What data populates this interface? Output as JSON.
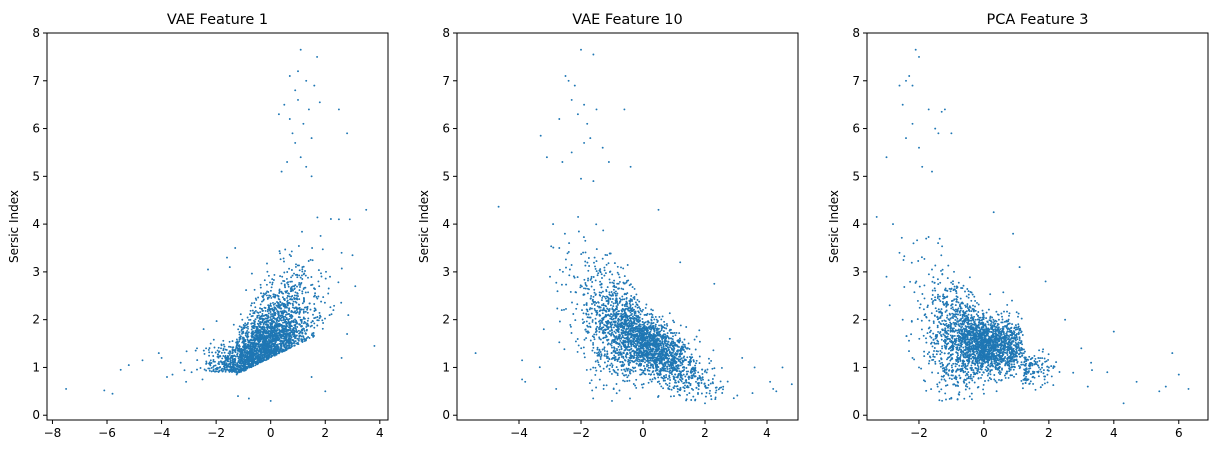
{
  "figure": {
    "marker_color": "#1f77b4",
    "axis_color": "#000000"
  },
  "chart_data": [
    {
      "type": "scatter",
      "title": "VAE Feature 1",
      "xlabel": "",
      "ylabel": "Sersic Index",
      "xlim": [
        -8.2,
        4.3
      ],
      "ylim": [
        -0.1,
        8.0
      ],
      "xticks": [
        -8,
        -6,
        -4,
        -2,
        0,
        2,
        4
      ],
      "yticks": [
        0,
        1,
        2,
        3,
        4,
        5,
        6,
        7,
        8
      ],
      "trend": "positive, fanning upward toward x≈0 to 2",
      "cloud": {
        "center": [
          -0.3,
          1.5
        ],
        "x_range": [
          -2.2,
          2.5
        ],
        "y_range": [
          0.3,
          4.6
        ]
      },
      "points": [
        [
          -7.5,
          0.55
        ],
        [
          -6.1,
          0.52
        ],
        [
          -5.8,
          0.45
        ],
        [
          -5.5,
          0.95
        ],
        [
          -5.2,
          1.05
        ],
        [
          -4.7,
          1.15
        ],
        [
          -4.1,
          1.3
        ],
        [
          -4.0,
          1.2
        ],
        [
          -3.8,
          0.8
        ],
        [
          -3.6,
          0.85
        ],
        [
          -3.3,
          1.1
        ],
        [
          -3.1,
          0.7
        ],
        [
          -2.9,
          0.9
        ],
        [
          -2.7,
          1.4
        ],
        [
          -2.5,
          0.75
        ],
        [
          -2.3,
          3.05
        ],
        [
          -2.2,
          1.5
        ],
        [
          -1.6,
          3.3
        ],
        [
          -1.5,
          3.1
        ],
        [
          -1.3,
          3.5
        ],
        [
          0.3,
          6.3
        ],
        [
          0.5,
          6.5
        ],
        [
          0.7,
          6.2
        ],
        [
          0.7,
          7.1
        ],
        [
          0.8,
          5.9
        ],
        [
          0.9,
          6.8
        ],
        [
          1.0,
          6.6
        ],
        [
          1.0,
          7.2
        ],
        [
          1.1,
          7.65
        ],
        [
          1.2,
          6.1
        ],
        [
          1.3,
          7.0
        ],
        [
          1.4,
          6.4
        ],
        [
          1.5,
          5.8
        ],
        [
          1.6,
          6.9
        ],
        [
          1.7,
          7.5
        ],
        [
          1.8,
          6.55
        ],
        [
          1.1,
          5.4
        ],
        [
          0.9,
          5.7
        ],
        [
          1.3,
          5.2
        ],
        [
          0.6,
          5.3
        ],
        [
          1.5,
          5.0
        ],
        [
          0.4,
          5.1
        ],
        [
          2.5,
          6.4
        ],
        [
          2.8,
          5.9
        ],
        [
          2.5,
          4.1
        ],
        [
          2.9,
          4.1
        ],
        [
          3.5,
          4.3
        ],
        [
          3.0,
          3.35
        ],
        [
          3.1,
          2.7
        ],
        [
          2.6,
          3.4
        ],
        [
          2.3,
          2.2
        ],
        [
          2.6,
          1.2
        ],
        [
          2.8,
          1.7
        ],
        [
          3.8,
          1.45
        ],
        [
          2.0,
          0.5
        ],
        [
          1.5,
          0.8
        ],
        [
          -0.8,
          0.35
        ],
        [
          0.0,
          0.3
        ],
        [
          -1.2,
          0.4
        ]
      ]
    },
    {
      "type": "scatter",
      "title": "VAE Feature 10",
      "xlabel": "",
      "ylabel": "Sersic Index",
      "xlim": [
        -6.0,
        5.0
      ],
      "ylim": [
        -0.1,
        8.0
      ],
      "xticks": [
        -4,
        -2,
        0,
        2,
        4
      ],
      "yticks": [
        0,
        1,
        2,
        3,
        4,
        5,
        6,
        7,
        8
      ],
      "trend": "negative, high values at x≈-2",
      "cloud": {
        "center": [
          -0.3,
          1.5
        ],
        "x_range": [
          -2.6,
          2.8
        ],
        "y_range": [
          0.3,
          4.2
        ]
      },
      "points": [
        [
          -5.4,
          1.3
        ],
        [
          -3.9,
          0.75
        ],
        [
          -3.8,
          0.7
        ],
        [
          -3.9,
          1.15
        ],
        [
          -3.3,
          5.85
        ],
        [
          -3.1,
          5.4
        ],
        [
          -2.7,
          6.2
        ],
        [
          -2.5,
          7.1
        ],
        [
          -2.4,
          7.0
        ],
        [
          -2.3,
          6.6
        ],
        [
          -2.2,
          6.9
        ],
        [
          -2.1,
          6.3
        ],
        [
          -2.0,
          7.65
        ],
        [
          -1.9,
          6.5
        ],
        [
          -1.8,
          6.1
        ],
        [
          -1.6,
          7.55
        ],
        [
          -1.5,
          6.4
        ],
        [
          -1.7,
          5.8
        ],
        [
          -1.3,
          5.6
        ],
        [
          -1.1,
          5.3
        ],
        [
          -0.6,
          6.4
        ],
        [
          -0.4,
          5.2
        ],
        [
          -2.6,
          5.3
        ],
        [
          -2.3,
          5.5
        ],
        [
          -1.9,
          5.7
        ],
        [
          -1.6,
          4.9
        ],
        [
          -2.0,
          4.95
        ],
        [
          -2.9,
          4.0
        ],
        [
          -2.7,
          3.5
        ],
        [
          -3.0,
          2.9
        ],
        [
          -3.2,
          1.8
        ],
        [
          -2.8,
          0.55
        ],
        [
          0.5,
          4.3
        ],
        [
          1.2,
          3.2
        ],
        [
          2.3,
          2.75
        ],
        [
          2.8,
          1.6
        ],
        [
          3.2,
          1.2
        ],
        [
          3.6,
          1.0
        ],
        [
          4.1,
          0.7
        ],
        [
          4.2,
          0.55
        ],
        [
          4.5,
          1.0
        ],
        [
          4.8,
          0.65
        ],
        [
          4.3,
          0.5
        ],
        [
          2.0,
          0.25
        ],
        [
          1.0,
          0.4
        ],
        [
          -1.0,
          0.3
        ]
      ]
    },
    {
      "type": "scatter",
      "title": "PCA Feature 3",
      "xlabel": "",
      "ylabel": "Sersic Index",
      "xlim": [
        -3.6,
        6.9
      ],
      "ylim": [
        -0.1,
        8.0
      ],
      "xticks": [
        -2,
        0,
        2,
        4,
        6
      ],
      "yticks": [
        0,
        1,
        2,
        3,
        4,
        5,
        6,
        7,
        8
      ],
      "trend": "negative, decaying curve",
      "cloud": {
        "center": [
          -0.3,
          1.5
        ],
        "x_range": [
          -1.9,
          2.5
        ],
        "y_range": [
          0.4,
          4.0
        ]
      },
      "points": [
        [
          -3.3,
          4.15
        ],
        [
          -3.0,
          5.4
        ],
        [
          -3.0,
          2.9
        ],
        [
          -2.6,
          6.9
        ],
        [
          -2.4,
          7.0
        ],
        [
          -2.3,
          7.1
        ],
        [
          -2.2,
          6.9
        ],
        [
          -2.1,
          7.65
        ],
        [
          -2.0,
          7.5
        ],
        [
          -2.5,
          6.5
        ],
        [
          -2.2,
          6.1
        ],
        [
          -2.0,
          5.6
        ],
        [
          -1.7,
          6.4
        ],
        [
          -1.5,
          6.0
        ],
        [
          -1.4,
          5.9
        ],
        [
          -1.3,
          6.35
        ],
        [
          -1.2,
          6.4
        ],
        [
          -1.0,
          5.9
        ],
        [
          -2.4,
          5.8
        ],
        [
          -1.9,
          5.2
        ],
        [
          -1.6,
          5.1
        ],
        [
          -2.8,
          4.0
        ],
        [
          -2.6,
          3.4
        ],
        [
          -2.9,
          2.3
        ],
        [
          -2.5,
          2.0
        ],
        [
          -2.2,
          1.2
        ],
        [
          -2.0,
          1.0
        ],
        [
          0.3,
          4.25
        ],
        [
          0.9,
          3.8
        ],
        [
          1.1,
          3.1
        ],
        [
          1.9,
          2.8
        ],
        [
          2.5,
          2.0
        ],
        [
          3.0,
          1.4
        ],
        [
          3.3,
          1.1
        ],
        [
          3.8,
          0.9
        ],
        [
          4.0,
          1.75
        ],
        [
          4.3,
          0.25
        ],
        [
          4.7,
          0.7
        ],
        [
          5.4,
          0.5
        ],
        [
          5.6,
          0.6
        ],
        [
          5.8,
          1.3
        ],
        [
          6.0,
          0.85
        ],
        [
          6.3,
          0.55
        ],
        [
          3.2,
          0.6
        ],
        [
          -1.0,
          0.35
        ],
        [
          0.0,
          0.45
        ]
      ]
    }
  ]
}
